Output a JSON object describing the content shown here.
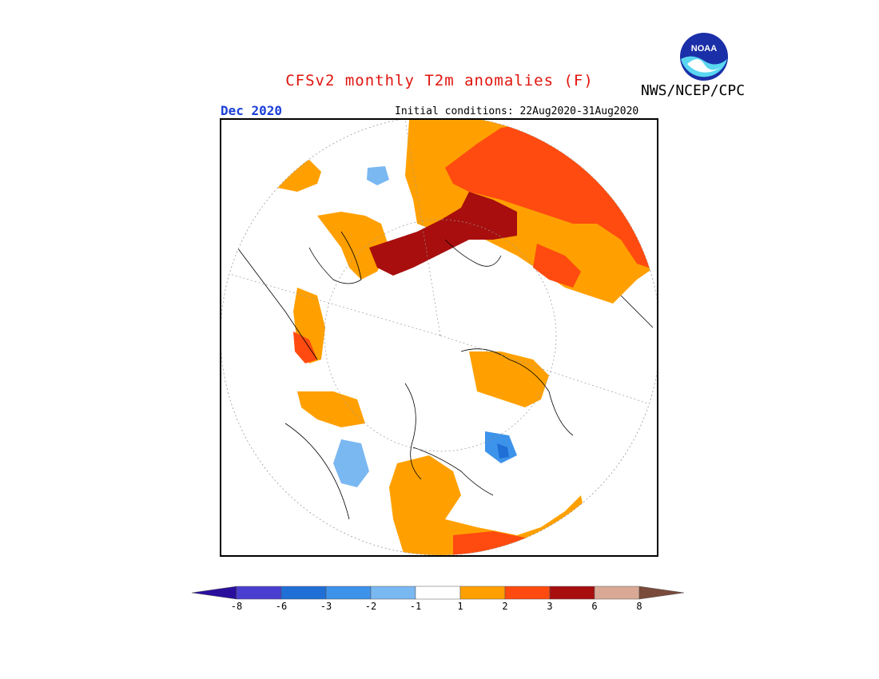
{
  "header": {
    "title": "CFSv2 monthly T2m anomalies (F)",
    "agency": "NWS/NCEP/CPC",
    "logo_text": "NOAA",
    "month": "Dec 2020",
    "initial_conditions": "Initial conditions: 22Aug2020-31Aug2020"
  },
  "legend": {
    "labels": [
      "-8",
      "-6",
      "-3",
      "-2",
      "-1",
      "1",
      "2",
      "3",
      "6",
      "8"
    ],
    "colors": [
      "#2a0f9c",
      "#4a3ed0",
      "#1f6fd6",
      "#3d92ea",
      "#7ab8f2",
      "#ffffff",
      "#ffa000",
      "#ff4a10",
      "#a80e0e",
      "#d9a996",
      "#7a4a3a"
    ]
  },
  "map": {
    "projection": "north-polar-stereographic",
    "colors": {
      "warm1": "#ffa000",
      "warm2": "#ff4a10",
      "warm3": "#a80e0e",
      "cool1": "#7ab8f2",
      "cool2": "#3d92ea",
      "cool3": "#1f6fd6"
    }
  }
}
